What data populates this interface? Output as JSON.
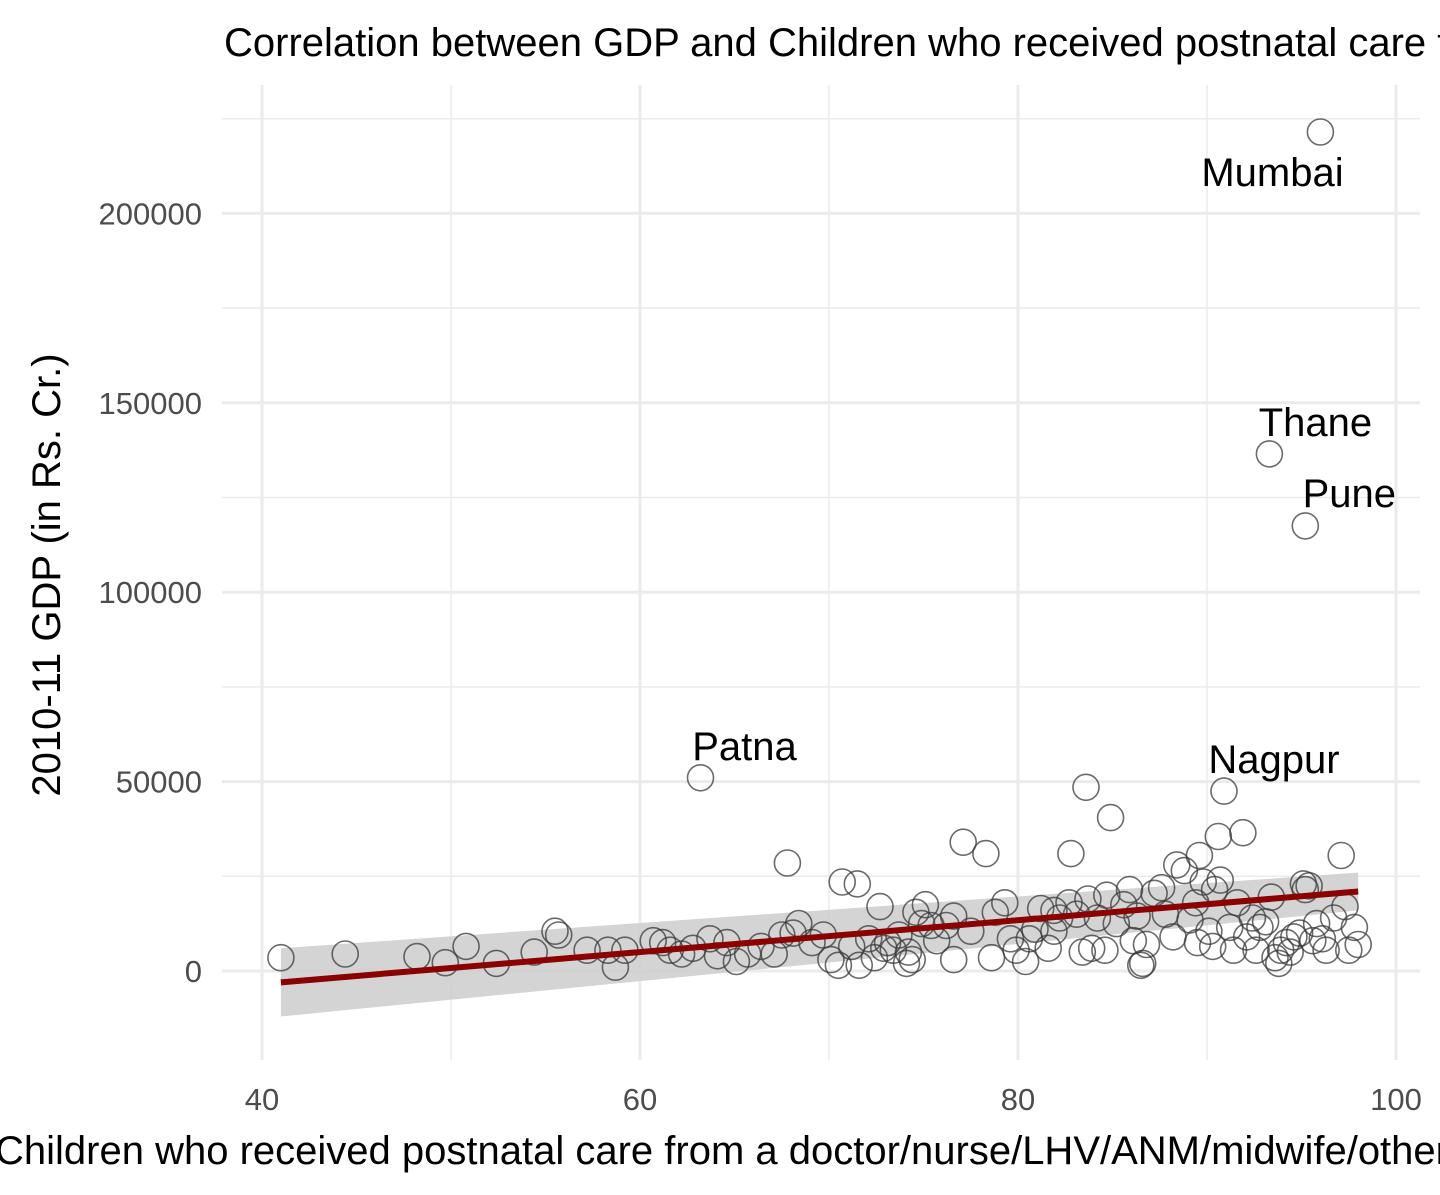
{
  "chart_data": {
    "type": "scatter",
    "title": "Correlation between GDP and Children who received postnatal care from a doctor/nurse/LHV/ANM/midwife/other health personnel",
    "xlabel": "Children who received postnatal care from a doctor/nurse/LHV/ANM/midwife/other health personnel",
    "ylabel": "2010-11 GDP (in Rs. Cr.)",
    "xlim": [
      38,
      101.5
    ],
    "ylim": [
      -18000,
      233000
    ],
    "x_ticks": [
      "40",
      "60",
      "80",
      "100"
    ],
    "y_ticks": [
      "0",
      "50000",
      "100000",
      "150000",
      "200000"
    ],
    "grid": true,
    "point_style": "open circle",
    "trend": {
      "method": "linear fit with confidence band",
      "color": "#8b0000",
      "band_color": "#cfcfcf",
      "x": [
        41,
        98
      ],
      "y": [
        -3000,
        21000
      ],
      "band_lower": [
        -12000,
        16000
      ],
      "band_upper": [
        6000,
        26000
      ]
    },
    "annotations": [
      {
        "label": "Mumbai",
        "x": 95.9,
        "y": 221500
      },
      {
        "label": "Thane",
        "x": 93.3,
        "y": 136500
      },
      {
        "label": "Pune",
        "x": 95.2,
        "y": 117500
      },
      {
        "label": "Patna",
        "x": 63.2,
        "y": 51000
      },
      {
        "label": "Nagpur",
        "x": 90.9,
        "y": 47500
      }
    ],
    "points": [
      [
        41,
        3500
      ],
      [
        44.4,
        4500
      ],
      [
        48.2,
        3800
      ],
      [
        49.7,
        2200
      ],
      [
        50.8,
        6500
      ],
      [
        52.4,
        2000
      ],
      [
        54.4,
        5000
      ],
      [
        55.5,
        10500
      ],
      [
        55.7,
        9500
      ],
      [
        57.2,
        5500
      ],
      [
        58.3,
        5500
      ],
      [
        58.7,
        1000
      ],
      [
        59.2,
        5500
      ],
      [
        60.7,
        8000
      ],
      [
        61.2,
        7500
      ],
      [
        61.6,
        5500
      ],
      [
        62.2,
        4500
      ],
      [
        62.8,
        6000
      ],
      [
        63.2,
        51000
      ],
      [
        63.7,
        8500
      ],
      [
        64.1,
        4000
      ],
      [
        64.6,
        7500
      ],
      [
        65.1,
        2500
      ],
      [
        65.7,
        4500
      ],
      [
        66.4,
        6500
      ],
      [
        67.1,
        4500
      ],
      [
        67.5,
        9500
      ],
      [
        68.1,
        10000
      ],
      [
        67.8,
        28500
      ],
      [
        68.4,
        12500
      ],
      [
        69.1,
        7500
      ],
      [
        69.7,
        9500
      ],
      [
        70.1,
        3000
      ],
      [
        70.5,
        1500
      ],
      [
        70.7,
        23500
      ],
      [
        71.2,
        6500
      ],
      [
        71.5,
        23000
      ],
      [
        71.6,
        1500
      ],
      [
        72.1,
        8500
      ],
      [
        72.4,
        3500
      ],
      [
        72.7,
        17000
      ],
      [
        72.9,
        6000
      ],
      [
        73.1,
        7500
      ],
      [
        73.4,
        5500
      ],
      [
        73.7,
        9500
      ],
      [
        74.2,
        5000
      ],
      [
        74.1,
        2000
      ],
      [
        74.6,
        15500
      ],
      [
        74.4,
        3000
      ],
      [
        74.9,
        12500
      ],
      [
        75.1,
        17500
      ],
      [
        75.4,
        12000
      ],
      [
        75.7,
        8000
      ],
      [
        76.2,
        12000
      ],
      [
        76.6,
        3000
      ],
      [
        76.6,
        14500
      ],
      [
        77.1,
        34000
      ],
      [
        77.5,
        10500
      ],
      [
        78.3,
        31000
      ],
      [
        78.6,
        3500
      ],
      [
        78.8,
        15500
      ],
      [
        79.3,
        18000
      ],
      [
        79.6,
        8500
      ],
      [
        79.9,
        5500
      ],
      [
        80.4,
        2500
      ],
      [
        80.6,
        8500
      ],
      [
        80.9,
        11000
      ],
      [
        81.2,
        16500
      ],
      [
        81.6,
        6000
      ],
      [
        81.9,
        10500
      ],
      [
        81.9,
        16000
      ],
      [
        82.2,
        14000
      ],
      [
        82.7,
        18000
      ],
      [
        82.8,
        31000
      ],
      [
        83.1,
        15000
      ],
      [
        83.4,
        5000
      ],
      [
        83.6,
        48500
      ],
      [
        83.7,
        19000
      ],
      [
        83.9,
        6000
      ],
      [
        84.2,
        14000
      ],
      [
        84.6,
        5500
      ],
      [
        84.7,
        20000
      ],
      [
        84.9,
        40500
      ],
      [
        85.2,
        12500
      ],
      [
        85.6,
        17500
      ],
      [
        85.9,
        21500
      ],
      [
        86.1,
        8000
      ],
      [
        86.3,
        14500
      ],
      [
        86.5,
        1500
      ],
      [
        86.6,
        2000
      ],
      [
        86.8,
        7000
      ],
      [
        87.2,
        20500
      ],
      [
        87.6,
        22000
      ],
      [
        87.8,
        15000
      ],
      [
        88.2,
        9000
      ],
      [
        88.4,
        28000
      ],
      [
        88.8,
        26500
      ],
      [
        89.1,
        13500
      ],
      [
        89.4,
        18000
      ],
      [
        89.5,
        7500
      ],
      [
        89.6,
        30500
      ],
      [
        89.8,
        23500
      ],
      [
        90.1,
        10500
      ],
      [
        90.3,
        6500
      ],
      [
        90.4,
        21500
      ],
      [
        90.6,
        35500
      ],
      [
        90.7,
        24000
      ],
      [
        90.9,
        47500
      ],
      [
        91.2,
        11500
      ],
      [
        91.4,
        5500
      ],
      [
        91.6,
        18000
      ],
      [
        91.9,
        36500
      ],
      [
        92.1,
        9000
      ],
      [
        92.4,
        14000
      ],
      [
        92.6,
        5500
      ],
      [
        92.8,
        11500
      ],
      [
        93.1,
        13000
      ],
      [
        93.4,
        19500
      ],
      [
        93.6,
        3500
      ],
      [
        93.8,
        2000
      ],
      [
        93.9,
        5500
      ],
      [
        94.2,
        7500
      ],
      [
        94.4,
        5000
      ],
      [
        94.6,
        9000
      ],
      [
        94.9,
        10000
      ],
      [
        95.1,
        23000
      ],
      [
        95.2,
        21500
      ],
      [
        95.4,
        22500
      ],
      [
        95.6,
        8000
      ],
      [
        95.8,
        12500
      ],
      [
        96.1,
        8500
      ],
      [
        96.3,
        5500
      ],
      [
        96.7,
        14000
      ],
      [
        97.1,
        30500
      ],
      [
        97.3,
        17000
      ],
      [
        97.5,
        5500
      ],
      [
        97.8,
        11500
      ],
      [
        98,
        7000
      ],
      [
        96.0,
        221500
      ],
      [
        93.3,
        136500
      ],
      [
        95.2,
        117500
      ]
    ]
  }
}
